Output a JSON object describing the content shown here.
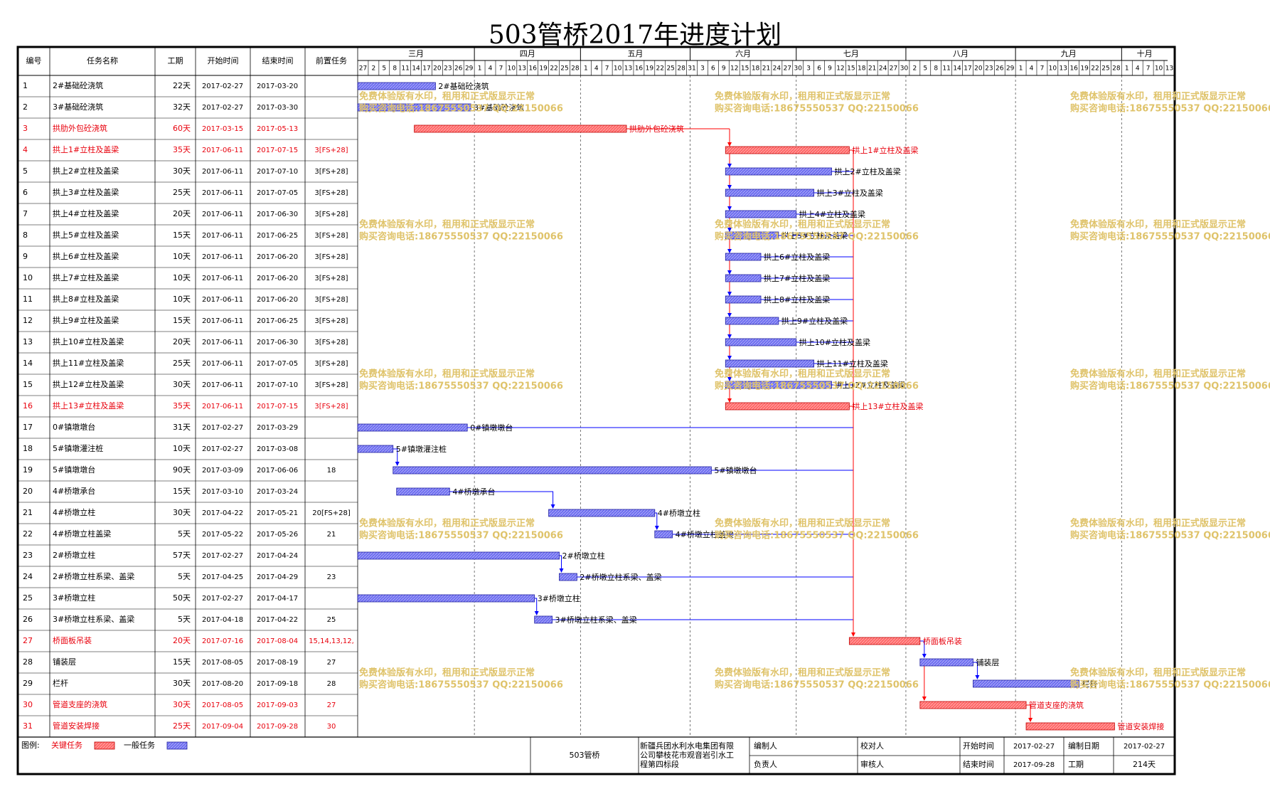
{
  "title": "503管桥2017年进度计划",
  "columns": [
    "编号",
    "任务名称",
    "工期",
    "开始时间",
    "结束时间",
    "前置任务"
  ],
  "months": [
    "三月",
    "四月",
    "五月",
    "六月",
    "七月",
    "八月",
    "九月",
    "十月"
  ],
  "day_ticks": [
    "27",
    "2",
    "5",
    "8",
    "11",
    "14",
    "17",
    "20",
    "23",
    "26",
    "29",
    "1",
    "4",
    "7",
    "10",
    "13",
    "16",
    "19",
    "22",
    "25",
    "28",
    "1",
    "4",
    "7",
    "10",
    "13",
    "16",
    "19",
    "22",
    "25",
    "28",
    "31",
    "3",
    "6",
    "9",
    "12",
    "15",
    "18",
    "21",
    "24",
    "27",
    "30",
    "3",
    "6",
    "9",
    "12",
    "15",
    "18",
    "21",
    "24",
    "27",
    "30",
    "2",
    "5",
    "8",
    "11",
    "14",
    "17",
    "20",
    "23",
    "26",
    "29",
    "1",
    "4",
    "7",
    "10",
    "13",
    "16",
    "19",
    "22",
    "25",
    "28",
    "1",
    "4",
    "7",
    "10",
    "13"
  ],
  "watermark": {
    "line1": "免费体验版有水印，租用和正式版显示正常",
    "line2": "购买咨询电话:18675550537 QQ:22150066"
  },
  "footer": {
    "legend_label": "图例:",
    "critical_label": "关键任务",
    "normal_label": "一般任务",
    "project_name": "503管桥",
    "company": "新疆兵团水利水电集团有限公司攀枝花市观音岩引水工程第四标段",
    "drawn_by_label": "编制人",
    "checked_by_label": "校对人",
    "reviewed_by_label": "审核人",
    "responsible_label": "负责人",
    "start_label": "开始时间",
    "start_value": "2017-02-27",
    "end_label": "结束时间",
    "end_value": "2017-09-28",
    "date_label": "编制日期",
    "date_value": "2017-02-27",
    "duration_label": "工期",
    "duration_value": "214天"
  },
  "colors": {
    "critical": "#ff6666",
    "critical_text": "#e8000c",
    "normal": "#6c6cf0",
    "link": "#0000ff",
    "critical_link": "#ff0000",
    "watermark": "#dfc36a"
  },
  "chart_data": {
    "type": "gantt",
    "x_range": [
      "2017-02-27",
      "2017-10-13"
    ],
    "tasks": [
      {
        "id": "1",
        "name": "2#基础砼浇筑",
        "duration": "22天",
        "start": "2017-02-27",
        "end": "2017-03-20",
        "pred": "",
        "critical": false
      },
      {
        "id": "2",
        "name": "3#基础砼浇筑",
        "duration": "32天",
        "start": "2017-02-27",
        "end": "2017-03-30",
        "pred": "",
        "critical": false
      },
      {
        "id": "3",
        "name": "拱肋外包砼浇筑",
        "duration": "60天",
        "start": "2017-03-15",
        "end": "2017-05-13",
        "pred": "",
        "critical": true
      },
      {
        "id": "4",
        "name": "拱上1#立柱及盖梁",
        "duration": "35天",
        "start": "2017-06-11",
        "end": "2017-07-15",
        "pred": "3[FS+28]",
        "critical": true
      },
      {
        "id": "5",
        "name": "拱上2#立柱及盖梁",
        "duration": "30天",
        "start": "2017-06-11",
        "end": "2017-07-10",
        "pred": "3[FS+28]",
        "critical": false
      },
      {
        "id": "6",
        "name": "拱上3#立柱及盖梁",
        "duration": "25天",
        "start": "2017-06-11",
        "end": "2017-07-05",
        "pred": "3[FS+28]",
        "critical": false
      },
      {
        "id": "7",
        "name": "拱上4#立柱及盖梁",
        "duration": "20天",
        "start": "2017-06-11",
        "end": "2017-06-30",
        "pred": "3[FS+28]",
        "critical": false
      },
      {
        "id": "8",
        "name": "拱上5#立柱及盖梁",
        "duration": "15天",
        "start": "2017-06-11",
        "end": "2017-06-25",
        "pred": "3[FS+28]",
        "critical": false
      },
      {
        "id": "9",
        "name": "拱上6#立柱及盖梁",
        "duration": "10天",
        "start": "2017-06-11",
        "end": "2017-06-20",
        "pred": "3[FS+28]",
        "critical": false
      },
      {
        "id": "10",
        "name": "拱上7#立柱及盖梁",
        "duration": "10天",
        "start": "2017-06-11",
        "end": "2017-06-20",
        "pred": "3[FS+28]",
        "critical": false
      },
      {
        "id": "11",
        "name": "拱上8#立柱及盖梁",
        "duration": "10天",
        "start": "2017-06-11",
        "end": "2017-06-20",
        "pred": "3[FS+28]",
        "critical": false
      },
      {
        "id": "12",
        "name": "拱上9#立柱及盖梁",
        "duration": "15天",
        "start": "2017-06-11",
        "end": "2017-06-25",
        "pred": "3[FS+28]",
        "critical": false
      },
      {
        "id": "13",
        "name": "拱上10#立柱及盖梁",
        "duration": "20天",
        "start": "2017-06-11",
        "end": "2017-06-30",
        "pred": "3[FS+28]",
        "critical": false
      },
      {
        "id": "14",
        "name": "拱上11#立柱及盖梁",
        "duration": "25天",
        "start": "2017-06-11",
        "end": "2017-07-05",
        "pred": "3[FS+28]",
        "critical": false
      },
      {
        "id": "15",
        "name": "拱上12#立柱及盖梁",
        "duration": "30天",
        "start": "2017-06-11",
        "end": "2017-07-10",
        "pred": "3[FS+28]",
        "critical": false
      },
      {
        "id": "16",
        "name": "拱上13#立柱及盖梁",
        "duration": "35天",
        "start": "2017-06-11",
        "end": "2017-07-15",
        "pred": "3[FS+28]",
        "critical": true
      },
      {
        "id": "17",
        "name": "0#镇墩墩台",
        "duration": "31天",
        "start": "2017-02-27",
        "end": "2017-03-29",
        "pred": "",
        "critical": false
      },
      {
        "id": "18",
        "name": "5#镇墩灌注桩",
        "duration": "10天",
        "start": "2017-02-27",
        "end": "2017-03-08",
        "pred": "",
        "critical": false
      },
      {
        "id": "19",
        "name": "5#镇墩墩台",
        "duration": "90天",
        "start": "2017-03-09",
        "end": "2017-06-06",
        "pred": "18",
        "critical": false
      },
      {
        "id": "20",
        "name": "4#桥墩承台",
        "duration": "15天",
        "start": "2017-03-10",
        "end": "2017-03-24",
        "pred": "",
        "critical": false
      },
      {
        "id": "21",
        "name": "4#桥墩立柱",
        "duration": "30天",
        "start": "2017-04-22",
        "end": "2017-05-21",
        "pred": "20[FS+28]",
        "critical": false
      },
      {
        "id": "22",
        "name": "4#桥墩立柱盖梁",
        "duration": "5天",
        "start": "2017-05-22",
        "end": "2017-05-26",
        "pred": "21",
        "critical": false
      },
      {
        "id": "23",
        "name": "2#桥墩立柱",
        "duration": "57天",
        "start": "2017-02-27",
        "end": "2017-04-24",
        "pred": "",
        "critical": false
      },
      {
        "id": "24",
        "name": "2#桥墩立柱系梁、盖梁",
        "duration": "5天",
        "start": "2017-04-25",
        "end": "2017-04-29",
        "pred": "23",
        "critical": false
      },
      {
        "id": "25",
        "name": "3#桥墩立柱",
        "duration": "50天",
        "start": "2017-02-27",
        "end": "2017-04-17",
        "pred": "",
        "critical": false
      },
      {
        "id": "26",
        "name": "3#桥墩立柱系梁、盖梁",
        "duration": "5天",
        "start": "2017-04-18",
        "end": "2017-04-22",
        "pred": "25",
        "critical": false
      },
      {
        "id": "27",
        "name": "桥面板吊装",
        "duration": "20天",
        "start": "2017-07-16",
        "end": "2017-08-04",
        "pred": "15,14,13,12,",
        "critical": true
      },
      {
        "id": "28",
        "name": "铺装层",
        "duration": "15天",
        "start": "2017-08-05",
        "end": "2017-08-19",
        "pred": "27",
        "critical": false
      },
      {
        "id": "29",
        "name": "栏杆",
        "duration": "30天",
        "start": "2017-08-20",
        "end": "2017-09-18",
        "pred": "28",
        "critical": false
      },
      {
        "id": "30",
        "name": "管道支座的浇筑",
        "duration": "30天",
        "start": "2017-08-05",
        "end": "2017-09-03",
        "pred": "27",
        "critical": true
      },
      {
        "id": "31",
        "name": "管道安装焊接",
        "duration": "25天",
        "start": "2017-09-04",
        "end": "2017-09-28",
        "pred": "30",
        "critical": true
      }
    ]
  }
}
